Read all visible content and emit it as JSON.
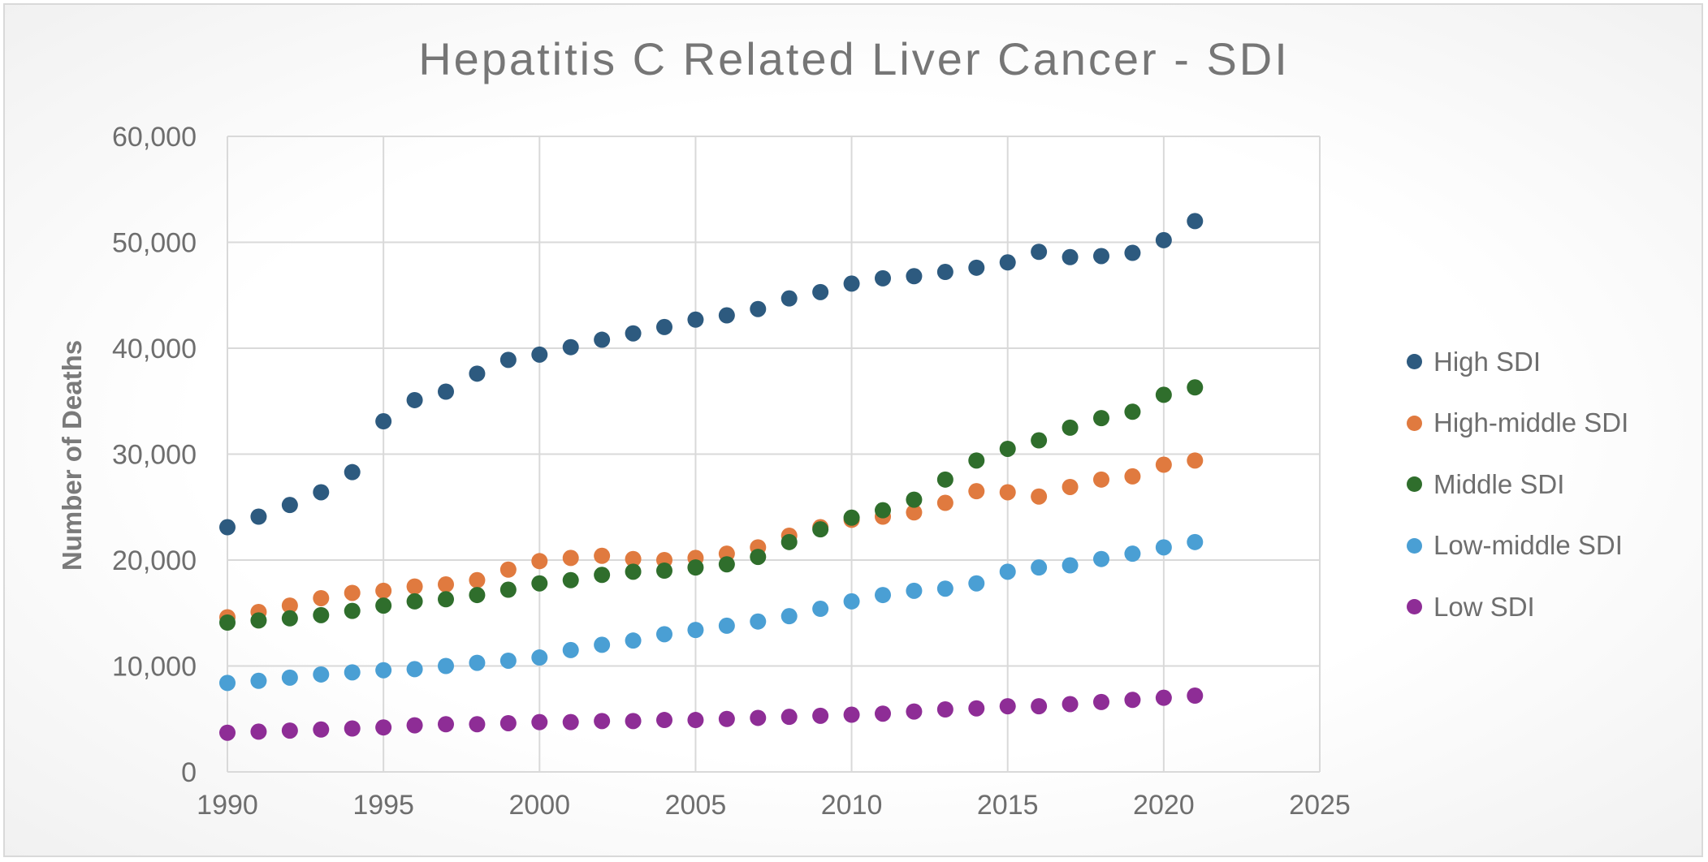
{
  "chart_data": {
    "type": "scatter",
    "title": "Hepatitis C Related Liver Cancer - SDI",
    "xlabel": "",
    "ylabel": "Number of Deaths",
    "xlim": [
      1990,
      2025
    ],
    "ylim": [
      0,
      60000
    ],
    "x_ticks": [
      1990,
      1995,
      2000,
      2005,
      2010,
      2015,
      2020,
      2025
    ],
    "y_ticks": [
      0,
      10000,
      20000,
      30000,
      40000,
      50000,
      60000
    ],
    "x_tick_labels": [
      "1990",
      "1995",
      "2000",
      "2005",
      "2010",
      "2015",
      "2020",
      "2025"
    ],
    "y_tick_labels": [
      "0",
      "10,000",
      "20,000",
      "30,000",
      "40,000",
      "50,000",
      "60,000"
    ],
    "grid": true,
    "legend_position": "right",
    "x": [
      1990,
      1991,
      1992,
      1993,
      1994,
      1995,
      1996,
      1997,
      1998,
      1999,
      2000,
      2001,
      2002,
      2003,
      2004,
      2005,
      2006,
      2007,
      2008,
      2009,
      2010,
      2011,
      2012,
      2013,
      2014,
      2015,
      2016,
      2017,
      2018,
      2019,
      2020,
      2021
    ],
    "series": [
      {
        "name": "High SDI",
        "color": "#2d5a7f",
        "values": [
          23100,
          24100,
          25200,
          26400,
          28300,
          33100,
          35100,
          35900,
          37600,
          38900,
          39400,
          40100,
          40800,
          41400,
          42000,
          42700,
          43100,
          43700,
          44700,
          45300,
          46100,
          46600,
          46800,
          47200,
          47600,
          48100,
          49100,
          48600,
          48700,
          49000,
          50200,
          52000
        ]
      },
      {
        "name": "High-middle SDI",
        "color": "#e07a3f",
        "values": [
          14600,
          15100,
          15700,
          16400,
          16900,
          17100,
          17500,
          17700,
          18100,
          19100,
          19900,
          20200,
          20400,
          20100,
          20000,
          20200,
          20600,
          21200,
          22300,
          23100,
          23800,
          24100,
          24500,
          25400,
          26500,
          26400,
          26000,
          26900,
          27600,
          27900,
          29000,
          29400
        ]
      },
      {
        "name": "Middle SDI",
        "color": "#2f6e2c",
        "values": [
          14100,
          14300,
          14500,
          14800,
          15200,
          15700,
          16100,
          16300,
          16700,
          17200,
          17800,
          18100,
          18600,
          18900,
          19000,
          19300,
          19600,
          20300,
          21700,
          22900,
          24000,
          24700,
          25700,
          27600,
          29400,
          30500,
          31300,
          32500,
          33400,
          34000,
          35600,
          36300
        ]
      },
      {
        "name": "Low-middle SDI",
        "color": "#4a9fd4",
        "values": [
          8400,
          8600,
          8900,
          9200,
          9400,
          9600,
          9700,
          10000,
          10300,
          10500,
          10800,
          11500,
          12000,
          12400,
          13000,
          13400,
          13800,
          14200,
          14700,
          15400,
          16100,
          16700,
          17100,
          17300,
          17800,
          18900,
          19300,
          19500,
          20100,
          20600,
          21200,
          21700
        ]
      },
      {
        "name": "Low SDI",
        "color": "#8e2d96",
        "values": [
          3700,
          3800,
          3900,
          4000,
          4100,
          4200,
          4400,
          4500,
          4500,
          4600,
          4700,
          4700,
          4800,
          4800,
          4900,
          4900,
          5000,
          5100,
          5200,
          5300,
          5400,
          5500,
          5700,
          5900,
          6000,
          6200,
          6200,
          6400,
          6600,
          6800,
          7000,
          7200
        ]
      }
    ]
  }
}
